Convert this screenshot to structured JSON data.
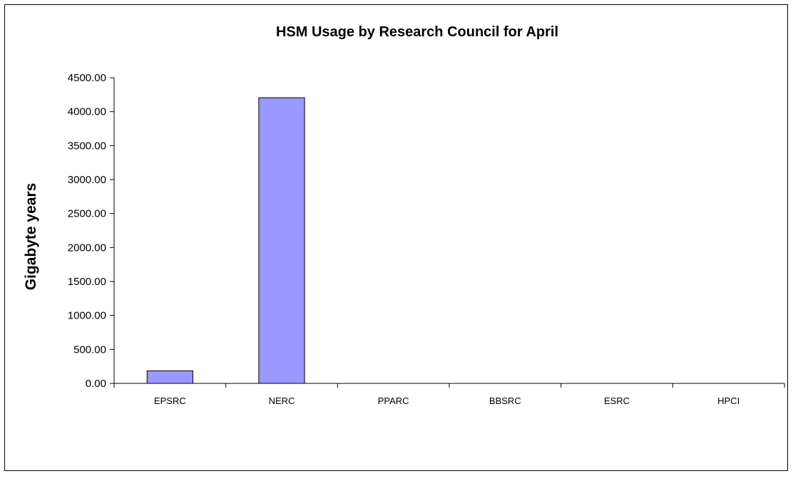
{
  "chart_data": {
    "type": "bar",
    "title": "HSM Usage by Research Council for April",
    "xlabel": "",
    "ylabel": "Gigabyte years",
    "categories": [
      "EPSRC",
      "NERC",
      "PPARC",
      "BBSRC",
      "ESRC",
      "HPCI"
    ],
    "values": [
      185,
      4205,
      0,
      0,
      0,
      0
    ],
    "ylim": [
      0,
      4500
    ],
    "yticks": [
      "0.00",
      "500.00",
      "1000.00",
      "1500.00",
      "2000.00",
      "2500.00",
      "3000.00",
      "3500.00",
      "4000.00",
      "4500.00"
    ],
    "grid": false,
    "legend": "none",
    "bar_color": "#9999ff",
    "bar_stroke": "#000000"
  }
}
